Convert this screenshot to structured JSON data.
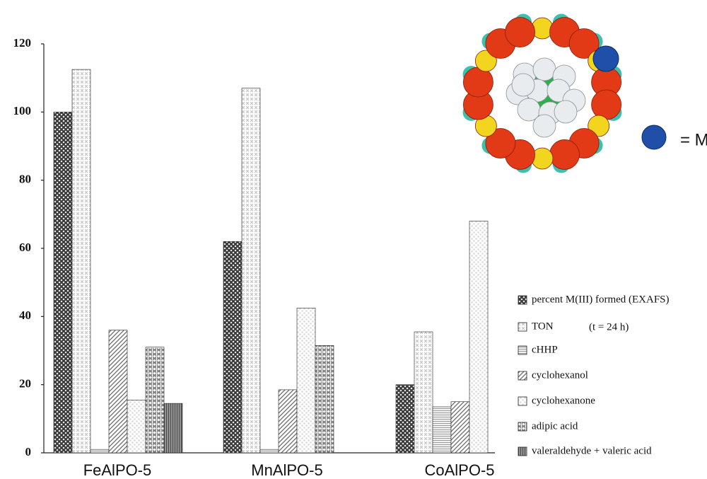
{
  "chart_data": {
    "type": "bar",
    "categories": [
      "FeAlPO-5",
      "MnAlPO-5",
      "CoAlPO-5"
    ],
    "series": [
      {
        "name": "percent M(III) formed (EXAFS)",
        "color": "#3a3a3a",
        "values": [
          100,
          62,
          20
        ]
      },
      {
        "name": "TON",
        "color": "#c8c8c8",
        "values": [
          112.5,
          107,
          35.5
        ]
      },
      {
        "name": "cHHP",
        "color": "#9a9a9a",
        "values": [
          1,
          1,
          13.5
        ]
      },
      {
        "name": "cyclohexanol",
        "color": "#6a6a6a",
        "values": [
          36,
          18.5,
          15
        ]
      },
      {
        "name": "cyclohexanone",
        "color": "#d8d8d8",
        "values": [
          15.5,
          42.5,
          68
        ]
      },
      {
        "name": "adipic acid",
        "color": "#7c7c7c",
        "values": [
          31,
          31.5,
          null
        ]
      },
      {
        "name": "valeraldehyde + valeric acid",
        "color": "#4a4a4a",
        "values": [
          14.5,
          null,
          null
        ]
      }
    ],
    "annotations": [
      "(t = 24 h)",
      "= M"
    ],
    "ylim": [
      0,
      120
    ],
    "yticks": [
      0,
      20,
      40,
      60,
      80,
      100,
      120
    ],
    "grid": false
  }
}
